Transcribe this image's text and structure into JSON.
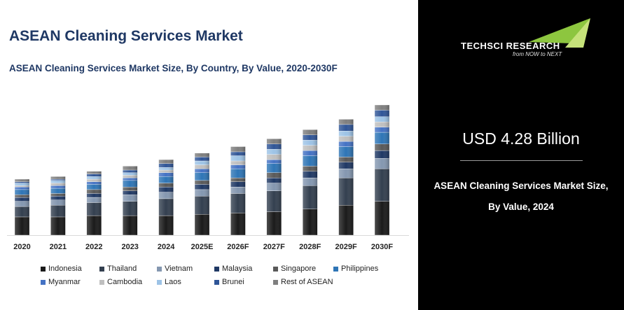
{
  "header": {
    "title": "ASEAN Cleaning Services Market",
    "subtitle": "ASEAN Cleaning Services Market Size, By Country, By Value, 2020-2030F"
  },
  "brand": {
    "name": "TECHSCI RESEARCH",
    "tagline": "from NOW to NEXT",
    "logo_colors": [
      "#8dc63f",
      "#c6e27a"
    ]
  },
  "highlight": {
    "value": "USD 4.28 Billion",
    "caption_line1": "ASEAN Cleaning Services Market Size,",
    "caption_line2": "By Value, 2024"
  },
  "chart_data": {
    "type": "bar",
    "stacked": true,
    "categories": [
      "2020",
      "2021",
      "2022",
      "2023",
      "2024",
      "2025E",
      "2026F",
      "2027F",
      "2028F",
      "2029F",
      "2030F"
    ],
    "totals_relative": [
      0.43,
      0.45,
      0.49,
      0.53,
      0.58,
      0.63,
      0.68,
      0.74,
      0.81,
      0.89,
      1.0
    ],
    "series": [
      {
        "name": "Indonesia",
        "color": "#1a1a1a",
        "values": [
          0.14,
          0.14,
          0.15,
          0.15,
          0.15,
          0.16,
          0.17,
          0.18,
          0.2,
          0.23,
          0.26
        ]
      },
      {
        "name": "Thailand",
        "color": "#333f4f",
        "values": [
          0.08,
          0.09,
          0.1,
          0.11,
          0.13,
          0.14,
          0.15,
          0.16,
          0.18,
          0.21,
          0.25
        ]
      },
      {
        "name": "Vietnam",
        "color": "#8497b0",
        "values": [
          0.04,
          0.04,
          0.04,
          0.05,
          0.05,
          0.05,
          0.05,
          0.06,
          0.06,
          0.07,
          0.08
        ]
      },
      {
        "name": "Malaysia",
        "color": "#1f3864",
        "values": [
          0.03,
          0.03,
          0.03,
          0.03,
          0.04,
          0.04,
          0.04,
          0.04,
          0.05,
          0.05,
          0.06
        ]
      },
      {
        "name": "Singapore",
        "color": "#595959",
        "values": [
          0.02,
          0.02,
          0.03,
          0.03,
          0.03,
          0.03,
          0.03,
          0.04,
          0.04,
          0.04,
          0.05
        ]
      },
      {
        "name": "Philippines",
        "color": "#2e75b6",
        "values": [
          0.04,
          0.04,
          0.04,
          0.05,
          0.05,
          0.06,
          0.07,
          0.07,
          0.08,
          0.08,
          0.09
        ]
      },
      {
        "name": "Myanmar",
        "color": "#4472c4",
        "values": [
          0.02,
          0.02,
          0.02,
          0.02,
          0.03,
          0.03,
          0.03,
          0.03,
          0.04,
          0.04,
          0.04
        ]
      },
      {
        "name": "Cambodia",
        "color": "#bfbfbf",
        "values": [
          0.01,
          0.02,
          0.02,
          0.02,
          0.02,
          0.03,
          0.03,
          0.04,
          0.04,
          0.04,
          0.04
        ]
      },
      {
        "name": "Laos",
        "color": "#9dc3e6",
        "values": [
          0.02,
          0.02,
          0.02,
          0.02,
          0.02,
          0.03,
          0.04,
          0.04,
          0.04,
          0.04,
          0.04
        ]
      },
      {
        "name": "Brunei",
        "color": "#2f5597",
        "values": [
          0.01,
          0.01,
          0.02,
          0.02,
          0.03,
          0.03,
          0.03,
          0.04,
          0.04,
          0.05,
          0.05
        ]
      },
      {
        "name": "Rest of ASEAN",
        "color": "#7f7f7f",
        "values": [
          0.02,
          0.02,
          0.02,
          0.03,
          0.03,
          0.03,
          0.04,
          0.04,
          0.04,
          0.04,
          0.04
        ]
      }
    ],
    "title": "ASEAN Cleaning Services Market Size, By Country, By Value, 2020-2030F",
    "xlabel": "",
    "ylabel": "",
    "grid": false,
    "legend_position": "bottom"
  }
}
